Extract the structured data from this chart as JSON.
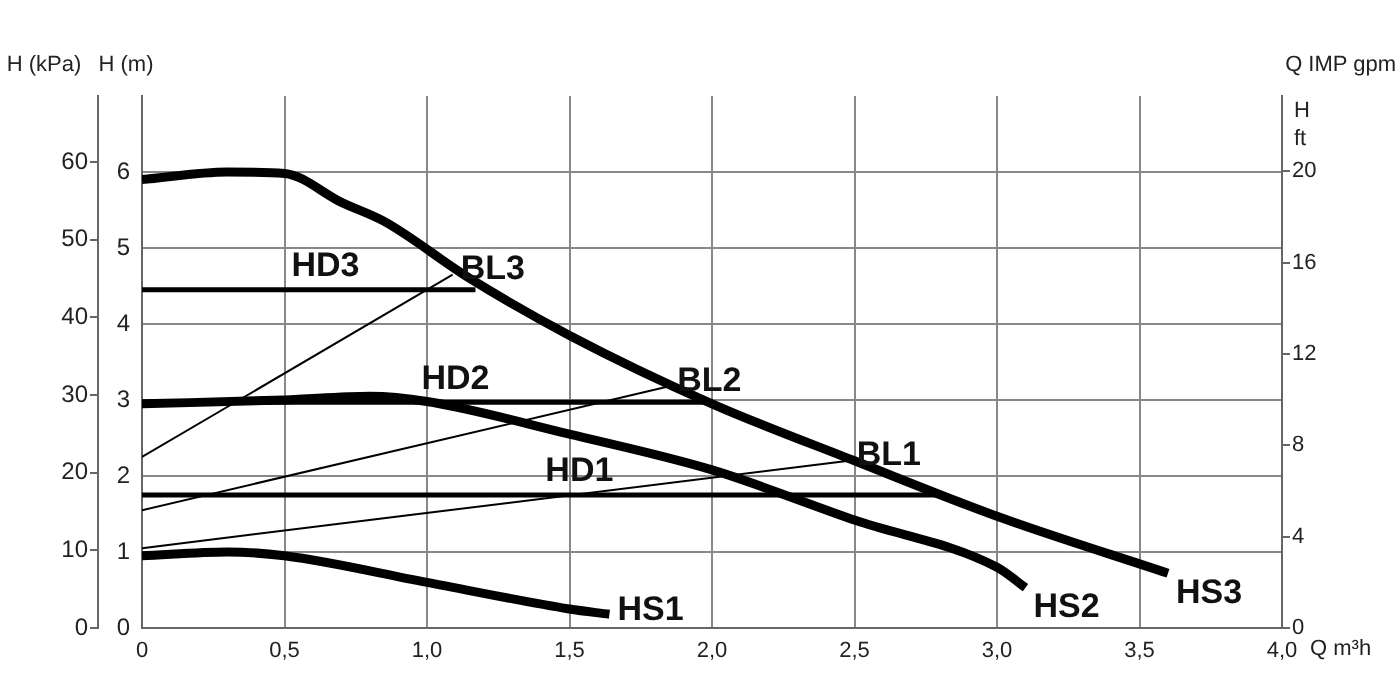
{
  "chart_data": {
    "type": "line",
    "xlabel": "Q m³h",
    "ylabel": "H (m)",
    "y2label": "H ft",
    "y3label": "H (kPa)",
    "annotations": [
      "Q IMP gpm"
    ],
    "xlim": [
      0,
      4
    ],
    "xticks": [
      0,
      {
        "value": 0.5,
        "label": "0,5"
      },
      {
        "value": 1,
        "label": "1,0"
      },
      {
        "value": 1.5,
        "label": "1,5"
      },
      {
        "value": 2,
        "label": "2,0"
      },
      {
        "value": 2.5,
        "label": "2,5"
      },
      {
        "value": 3,
        "label": "3,0"
      },
      {
        "value": 3.5,
        "label": "3,5"
      },
      {
        "value": 4,
        "label": "4,0"
      }
    ],
    "ylim": [
      0,
      7
    ],
    "yticks": [
      0,
      1,
      2,
      3,
      4,
      5,
      6
    ],
    "y2lim": [
      0,
      23.3
    ],
    "y2ticks": [
      0,
      4,
      8,
      12,
      16,
      20
    ],
    "y3lim": [
      0,
      68.5
    ],
    "y3ticks": [
      0,
      10,
      20,
      30,
      40,
      50,
      60
    ],
    "grid": true,
    "legend": false,
    "series": [
      {
        "name": "HS3",
        "color": "#000000",
        "x": [
          0,
          0.3,
          0.5,
          0.7,
          0.85,
          1.15,
          1.5,
          2,
          2.5,
          3,
          3.6
        ],
        "values": [
          5.9,
          6.0,
          5.98,
          5.6,
          5.35,
          4.6,
          3.85,
          2.95,
          2.2,
          1.47,
          0.72
        ]
      },
      {
        "name": "HS2",
        "color": "#000000",
        "x": [
          0,
          0.5,
          0.8,
          1,
          1.5,
          2,
          2.5,
          3,
          3.1
        ],
        "values": [
          2.95,
          3.0,
          3.05,
          2.98,
          2.55,
          2.08,
          1.42,
          0.8,
          0.53
        ]
      },
      {
        "name": "HS1",
        "color": "#000000",
        "x": [
          0,
          0.3,
          0.5,
          1,
          1.5,
          1.64
        ],
        "values": [
          0.95,
          1.0,
          0.95,
          0.6,
          0.25,
          0.18
        ]
      },
      {
        "name": "HD3",
        "color": "#000000",
        "x": [
          0,
          1.17
        ],
        "values": [
          4.45,
          4.45
        ]
      },
      {
        "name": "HD2",
        "color": "#000000",
        "x": [
          0,
          2
        ],
        "values": [
          2.97,
          2.97
        ]
      },
      {
        "name": "HD1",
        "color": "#000000",
        "x": [
          0,
          2.79
        ],
        "values": [
          1.75,
          1.75
        ]
      },
      {
        "name": "BL3",
        "color": "#000000",
        "x": [
          0,
          1.09
        ],
        "values": [
          2.25,
          4.65
        ]
      },
      {
        "name": "BL2",
        "color": "#000000",
        "x": [
          0,
          1.85
        ],
        "values": [
          1.55,
          3.18
        ]
      },
      {
        "name": "BL1",
        "color": "#000000",
        "x": [
          0,
          2.48
        ],
        "values": [
          1.05,
          2.2
        ]
      }
    ]
  }
}
